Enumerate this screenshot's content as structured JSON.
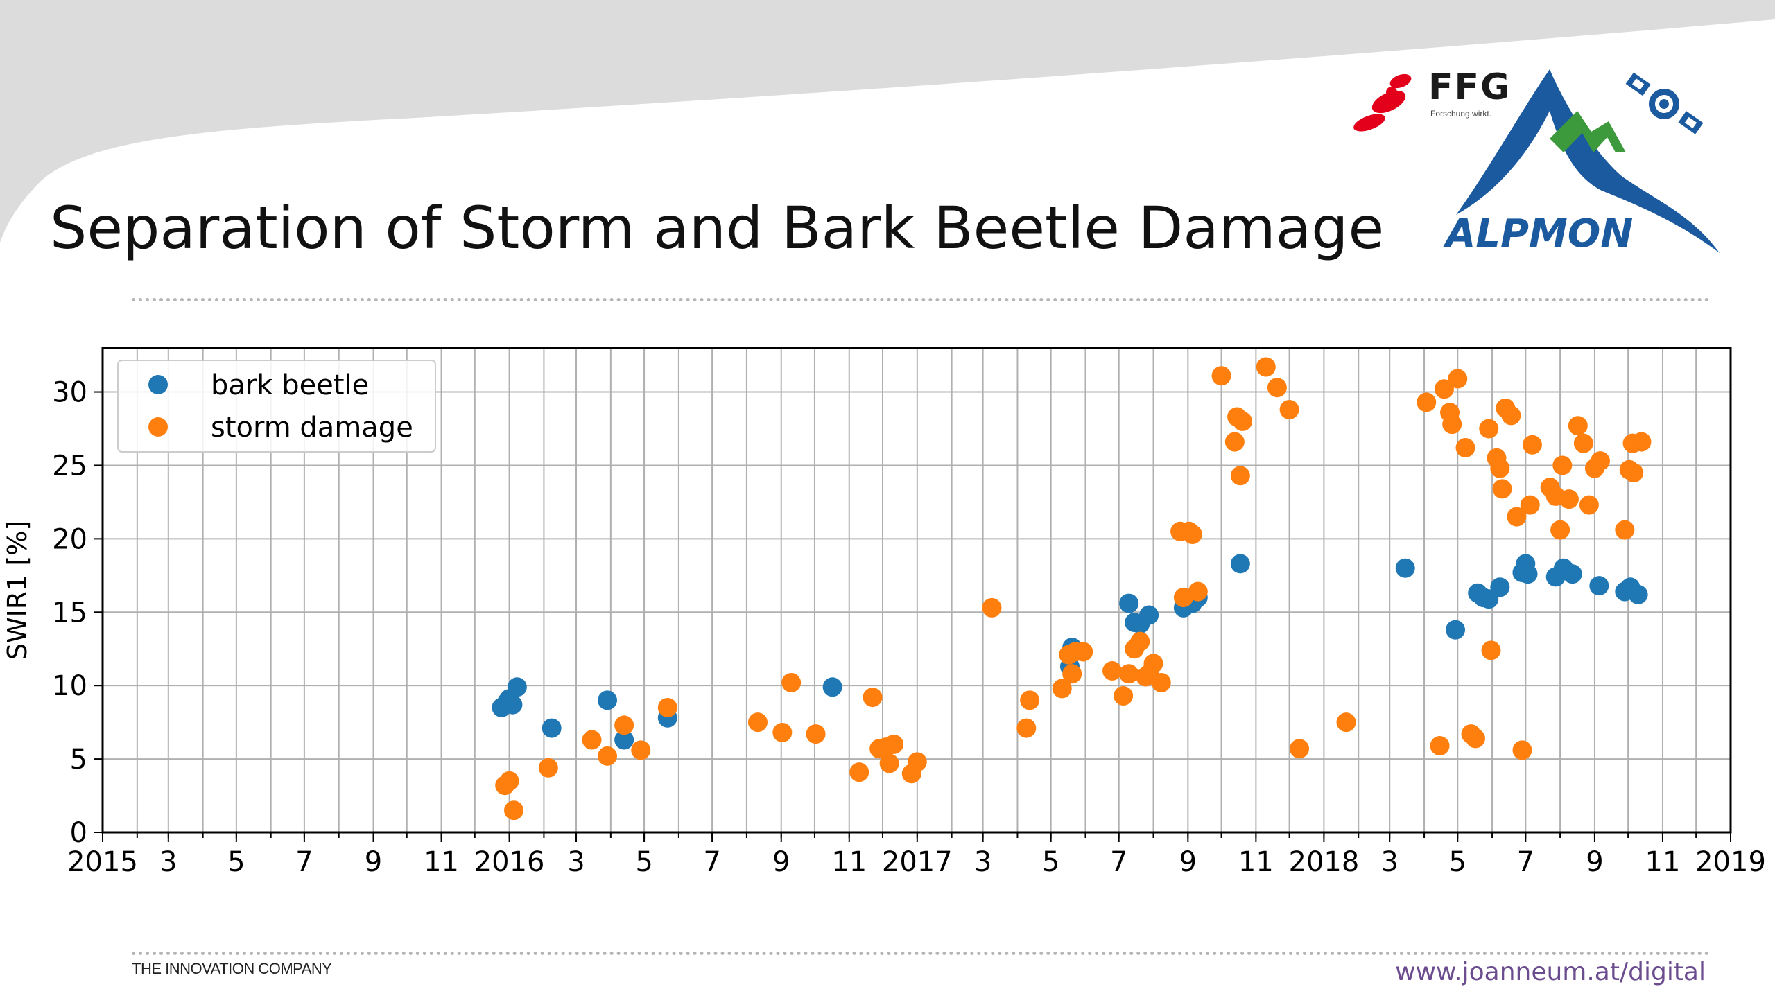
{
  "slide": {
    "title": "Separation of Storm and Bark Beetle Damage",
    "footer_left": "THE INNOVATION COMPANY",
    "footer_right": "www.joanneum.at/digital",
    "logo_ffg": "FFG",
    "logo_ffg_sub": "Forschung wirkt.",
    "logo_alpmon": "ALPMON"
  },
  "colors": {
    "bark_beetle": "#1f77b4",
    "storm_damage": "#ff7f0e",
    "ffg_red": "#e2001a",
    "alpmon_blue": "#1b5a9e",
    "alpmon_green": "#3c9a3c",
    "footer_url": "#6b4c8e"
  },
  "chart_data": {
    "type": "scatter",
    "title": "",
    "xlabel": "",
    "ylabel": "SWIR1 [%]",
    "xlim": [
      "2015-01-01",
      "2019-01-01"
    ],
    "ylim": [
      0,
      33
    ],
    "yticks": [
      0,
      5,
      10,
      15,
      20,
      25,
      30
    ],
    "xticks": [
      {
        "date": "2015-01-01",
        "label": "2015"
      },
      {
        "date": "2015-03-01",
        "label": "3"
      },
      {
        "date": "2015-05-01",
        "label": "5"
      },
      {
        "date": "2015-07-01",
        "label": "7"
      },
      {
        "date": "2015-09-01",
        "label": "9"
      },
      {
        "date": "2015-11-01",
        "label": "11"
      },
      {
        "date": "2016-01-01",
        "label": "2016"
      },
      {
        "date": "2016-03-01",
        "label": "3"
      },
      {
        "date": "2016-05-01",
        "label": "5"
      },
      {
        "date": "2016-07-01",
        "label": "7"
      },
      {
        "date": "2016-09-01",
        "label": "9"
      },
      {
        "date": "2016-11-01",
        "label": "11"
      },
      {
        "date": "2017-01-01",
        "label": "2017"
      },
      {
        "date": "2017-03-01",
        "label": "3"
      },
      {
        "date": "2017-05-01",
        "label": "5"
      },
      {
        "date": "2017-07-01",
        "label": "7"
      },
      {
        "date": "2017-09-01",
        "label": "9"
      },
      {
        "date": "2017-11-01",
        "label": "11"
      },
      {
        "date": "2018-01-01",
        "label": "2018"
      },
      {
        "date": "2018-03-01",
        "label": "3"
      },
      {
        "date": "2018-05-01",
        "label": "5"
      },
      {
        "date": "2018-07-01",
        "label": "7"
      },
      {
        "date": "2018-09-01",
        "label": "9"
      },
      {
        "date": "2018-11-01",
        "label": "11"
      },
      {
        "date": "2019-01-01",
        "label": "2019"
      }
    ],
    "grid": true,
    "legend_position": "top-left",
    "series": [
      {
        "name": "bark beetle",
        "color": "#1f77b4",
        "points": [
          [
            "2015-12-25",
            8.5
          ],
          [
            "2015-12-30",
            8.9
          ],
          [
            "2016-01-01",
            9.1
          ],
          [
            "2016-01-04",
            8.7
          ],
          [
            "2016-01-08",
            9.9
          ],
          [
            "2016-02-08",
            7.1
          ],
          [
            "2016-03-29",
            9.0
          ],
          [
            "2016-04-13",
            6.3
          ],
          [
            "2016-05-22",
            7.8
          ],
          [
            "2016-10-17",
            9.9
          ],
          [
            "2017-05-18",
            11.3
          ],
          [
            "2017-05-20",
            12.6
          ],
          [
            "2017-07-10",
            15.6
          ],
          [
            "2017-07-15",
            14.3
          ],
          [
            "2017-07-20",
            14.2
          ],
          [
            "2017-07-28",
            14.8
          ],
          [
            "2017-08-28",
            15.3
          ],
          [
            "2017-09-05",
            15.6
          ],
          [
            "2017-09-10",
            16.0
          ],
          [
            "2017-10-18",
            18.3
          ],
          [
            "2018-03-15",
            18.0
          ],
          [
            "2018-04-29",
            13.8
          ],
          [
            "2018-05-19",
            16.3
          ],
          [
            "2018-05-24",
            16.0
          ],
          [
            "2018-05-29",
            15.9
          ],
          [
            "2018-06-08",
            16.7
          ],
          [
            "2018-06-28",
            17.7
          ],
          [
            "2018-07-01",
            18.3
          ],
          [
            "2018-07-03",
            17.6
          ],
          [
            "2018-07-28",
            17.4
          ],
          [
            "2018-08-04",
            18.0
          ],
          [
            "2018-08-12",
            17.6
          ],
          [
            "2018-09-05",
            16.8
          ],
          [
            "2018-09-28",
            16.4
          ],
          [
            "2018-10-03",
            16.7
          ],
          [
            "2018-10-10",
            16.2
          ]
        ]
      },
      {
        "name": "storm damage",
        "color": "#ff7f0e",
        "points": [
          [
            "2015-12-28",
            3.2
          ],
          [
            "2016-01-01",
            3.5
          ],
          [
            "2016-01-05",
            1.5
          ],
          [
            "2016-02-05",
            4.4
          ],
          [
            "2016-03-15",
            6.3
          ],
          [
            "2016-03-29",
            5.2
          ],
          [
            "2016-04-13",
            7.3
          ],
          [
            "2016-04-28",
            5.6
          ],
          [
            "2016-05-22",
            8.5
          ],
          [
            "2016-08-11",
            7.5
          ],
          [
            "2016-09-02",
            6.8
          ],
          [
            "2016-09-10",
            10.2
          ],
          [
            "2016-10-02",
            6.7
          ],
          [
            "2016-11-10",
            4.1
          ],
          [
            "2016-11-22",
            9.2
          ],
          [
            "2016-11-28",
            5.7
          ],
          [
            "2016-12-04",
            5.8
          ],
          [
            "2016-12-07",
            4.7
          ],
          [
            "2016-12-11",
            6.0
          ],
          [
            "2016-12-27",
            4.0
          ],
          [
            "2017-01-01",
            4.8
          ],
          [
            "2017-03-09",
            15.3
          ],
          [
            "2017-04-09",
            7.1
          ],
          [
            "2017-04-12",
            9.0
          ],
          [
            "2017-05-11",
            9.8
          ],
          [
            "2017-05-17",
            12.1
          ],
          [
            "2017-05-20",
            10.8
          ],
          [
            "2017-05-23",
            12.3
          ],
          [
            "2017-05-30",
            12.3
          ],
          [
            "2017-06-25",
            11.0
          ],
          [
            "2017-07-05",
            9.3
          ],
          [
            "2017-07-10",
            10.8
          ],
          [
            "2017-07-15",
            12.5
          ],
          [
            "2017-07-20",
            13.0
          ],
          [
            "2017-07-25",
            10.6
          ],
          [
            "2017-07-28",
            10.8
          ],
          [
            "2017-08-01",
            11.5
          ],
          [
            "2017-08-08",
            10.2
          ],
          [
            "2017-08-25",
            20.5
          ],
          [
            "2017-08-28",
            16.0
          ],
          [
            "2017-09-02",
            20.5
          ],
          [
            "2017-09-05",
            20.3
          ],
          [
            "2017-09-10",
            16.4
          ],
          [
            "2017-10-01",
            31.1
          ],
          [
            "2017-10-13",
            26.6
          ],
          [
            "2017-10-15",
            28.3
          ],
          [
            "2017-10-18",
            24.3
          ],
          [
            "2017-10-20",
            28.0
          ],
          [
            "2017-11-10",
            31.7
          ],
          [
            "2017-11-20",
            30.3
          ],
          [
            "2017-12-01",
            28.8
          ],
          [
            "2017-12-10",
            5.7
          ],
          [
            "2018-01-21",
            7.5
          ],
          [
            "2018-04-03",
            29.3
          ],
          [
            "2018-04-15",
            5.9
          ],
          [
            "2018-04-19",
            30.2
          ],
          [
            "2018-04-24",
            28.6
          ],
          [
            "2018-04-26",
            27.8
          ],
          [
            "2018-05-01",
            30.9
          ],
          [
            "2018-05-08",
            26.2
          ],
          [
            "2018-05-13",
            6.7
          ],
          [
            "2018-05-17",
            6.4
          ],
          [
            "2018-05-29",
            27.5
          ],
          [
            "2018-05-31",
            12.4
          ],
          [
            "2018-06-05",
            25.5
          ],
          [
            "2018-06-08",
            24.8
          ],
          [
            "2018-06-10",
            23.4
          ],
          [
            "2018-06-13",
            28.9
          ],
          [
            "2018-06-18",
            28.4
          ],
          [
            "2018-06-23",
            21.5
          ],
          [
            "2018-06-28",
            5.6
          ],
          [
            "2018-07-05",
            22.3
          ],
          [
            "2018-07-07",
            26.4
          ],
          [
            "2018-07-23",
            23.5
          ],
          [
            "2018-07-28",
            22.9
          ],
          [
            "2018-08-01",
            20.6
          ],
          [
            "2018-08-03",
            25.0
          ],
          [
            "2018-08-09",
            22.7
          ],
          [
            "2018-08-17",
            27.7
          ],
          [
            "2018-08-22",
            26.5
          ],
          [
            "2018-08-27",
            22.3
          ],
          [
            "2018-09-01",
            24.8
          ],
          [
            "2018-09-06",
            25.3
          ],
          [
            "2018-09-28",
            20.6
          ],
          [
            "2018-10-02",
            24.7
          ],
          [
            "2018-10-05",
            26.5
          ],
          [
            "2018-10-06",
            24.5
          ],
          [
            "2018-10-13",
            26.6
          ]
        ]
      }
    ]
  }
}
